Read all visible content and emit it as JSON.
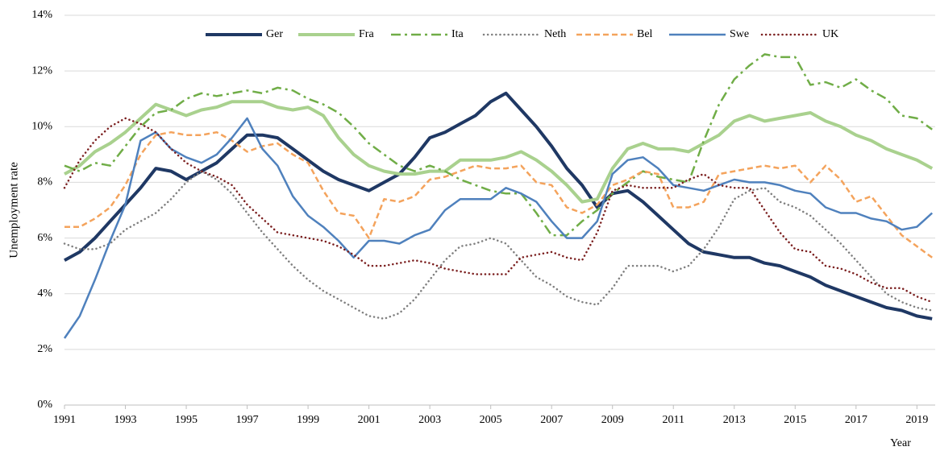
{
  "chart_data": {
    "type": "line",
    "xlabel": "Year",
    "ylabel": "Unemployment rate",
    "x": [
      1991,
      1991.5,
      1992,
      1992.5,
      1993,
      1993.5,
      1994,
      1994.5,
      1995,
      1995.5,
      1996,
      1996.5,
      1997,
      1997.5,
      1998,
      1998.5,
      1999,
      1999.5,
      2000,
      2000.5,
      2001,
      2001.5,
      2002,
      2002.5,
      2003,
      2003.5,
      2004,
      2004.5,
      2005,
      2005.5,
      2006,
      2006.5,
      2007,
      2007.5,
      2008,
      2008.5,
      2009,
      2009.5,
      2010,
      2010.5,
      2011,
      2011.5,
      2012,
      2012.5,
      2013,
      2013.5,
      2014,
      2014.5,
      2015,
      2015.5,
      2016,
      2016.5,
      2017,
      2017.5,
      2018,
      2018.5,
      2019,
      2019.5
    ],
    "series": [
      {
        "name": "Ger",
        "color": "#1f3864",
        "style": "bold",
        "values": [
          5.2,
          5.5,
          6.0,
          6.6,
          7.2,
          7.8,
          8.5,
          8.4,
          8.1,
          8.4,
          8.7,
          9.2,
          9.7,
          9.7,
          9.6,
          9.2,
          8.8,
          8.4,
          8.1,
          7.9,
          7.7,
          8.0,
          8.3,
          8.9,
          9.6,
          9.8,
          10.1,
          10.4,
          10.9,
          11.2,
          10.6,
          10.0,
          9.3,
          8.5,
          7.9,
          7.1,
          7.6,
          7.7,
          7.3,
          6.8,
          6.3,
          5.8,
          5.5,
          5.4,
          5.3,
          5.3,
          5.1,
          5.0,
          4.8,
          4.6,
          4.3,
          4.1,
          3.9,
          3.7,
          3.5,
          3.4,
          3.2,
          3.1
        ]
      },
      {
        "name": "Fra",
        "color": "#a9d18e",
        "style": "bold",
        "values": [
          8.3,
          8.6,
          9.1,
          9.4,
          9.8,
          10.3,
          10.8,
          10.6,
          10.4,
          10.6,
          10.7,
          10.9,
          10.9,
          10.9,
          10.7,
          10.6,
          10.7,
          10.4,
          9.6,
          9.0,
          8.6,
          8.4,
          8.3,
          8.3,
          8.4,
          8.4,
          8.8,
          8.8,
          8.8,
          8.9,
          9.1,
          8.8,
          8.4,
          7.9,
          7.3,
          7.4,
          8.5,
          9.2,
          9.4,
          9.2,
          9.2,
          9.1,
          9.4,
          9.7,
          10.2,
          10.4,
          10.2,
          10.3,
          10.4,
          10.5,
          10.2,
          10.0,
          9.7,
          9.5,
          9.2,
          9.0,
          8.8,
          8.5
        ]
      },
      {
        "name": "Ita",
        "color": "#70ad47",
        "style": "dashdot",
        "values": [
          8.6,
          8.4,
          8.7,
          8.6,
          9.3,
          10.0,
          10.5,
          10.6,
          11.0,
          11.2,
          11.1,
          11.2,
          11.3,
          11.2,
          11.4,
          11.3,
          11.0,
          10.8,
          10.5,
          10.0,
          9.4,
          9.0,
          8.6,
          8.4,
          8.6,
          8.4,
          8.1,
          7.9,
          7.7,
          7.6,
          7.6,
          6.9,
          6.1,
          6.1,
          6.6,
          7.0,
          7.6,
          8.0,
          8.4,
          8.2,
          8.1,
          8.0,
          9.5,
          10.8,
          11.7,
          12.2,
          12.6,
          12.5,
          12.5,
          11.5,
          11.6,
          11.4,
          11.7,
          11.3,
          11.0,
          10.4,
          10.3,
          9.9
        ]
      },
      {
        "name": "Neth",
        "color": "#7f7f7f",
        "style": "dotted",
        "values": [
          5.8,
          5.6,
          5.6,
          5.8,
          6.3,
          6.6,
          6.9,
          7.4,
          8.0,
          8.4,
          8.1,
          7.6,
          6.9,
          6.2,
          5.6,
          5.0,
          4.5,
          4.1,
          3.8,
          3.5,
          3.2,
          3.1,
          3.3,
          3.8,
          4.5,
          5.2,
          5.7,
          5.8,
          6.0,
          5.8,
          5.2,
          4.6,
          4.3,
          3.9,
          3.7,
          3.6,
          4.2,
          5.0,
          5.0,
          5.0,
          4.8,
          5.0,
          5.6,
          6.4,
          7.4,
          7.7,
          7.8,
          7.3,
          7.1,
          6.8,
          6.3,
          5.8,
          5.2,
          4.6,
          4.0,
          3.7,
          3.5,
          3.4
        ]
      },
      {
        "name": "Bel",
        "color": "#f4a35c",
        "style": "dashed",
        "values": [
          6.4,
          6.4,
          6.7,
          7.1,
          7.9,
          9.0,
          9.7,
          9.8,
          9.7,
          9.7,
          9.8,
          9.5,
          9.1,
          9.3,
          9.4,
          9.0,
          8.7,
          7.7,
          6.9,
          6.8,
          6.0,
          7.4,
          7.3,
          7.5,
          8.1,
          8.2,
          8.4,
          8.6,
          8.5,
          8.5,
          8.6,
          8.0,
          7.9,
          7.1,
          6.9,
          7.2,
          7.9,
          8.1,
          8.4,
          8.3,
          7.1,
          7.1,
          7.3,
          8.3,
          8.4,
          8.5,
          8.6,
          8.5,
          8.6,
          8.0,
          8.6,
          8.1,
          7.3,
          7.5,
          6.8,
          6.1,
          5.7,
          5.3
        ]
      },
      {
        "name": "Swe",
        "color": "#4f81bd",
        "style": "solid",
        "values": [
          2.4,
          3.2,
          4.5,
          5.9,
          7.2,
          9.5,
          9.8,
          9.2,
          8.9,
          8.7,
          9.0,
          9.6,
          10.3,
          9.2,
          8.6,
          7.5,
          6.8,
          6.4,
          5.9,
          5.3,
          5.9,
          5.9,
          5.8,
          6.1,
          6.3,
          7.0,
          7.4,
          7.4,
          7.4,
          7.8,
          7.6,
          7.3,
          6.6,
          6.0,
          6.0,
          6.6,
          8.3,
          8.8,
          8.9,
          8.5,
          7.9,
          7.8,
          7.7,
          7.9,
          8.1,
          8.0,
          8.0,
          7.9,
          7.7,
          7.6,
          7.1,
          6.9,
          6.9,
          6.7,
          6.6,
          6.3,
          6.4,
          6.9
        ]
      },
      {
        "name": "UK",
        "color": "#7b1f1f",
        "style": "dotted",
        "values": [
          7.8,
          8.8,
          9.5,
          10.0,
          10.3,
          10.1,
          9.8,
          9.2,
          8.7,
          8.4,
          8.2,
          7.9,
          7.2,
          6.7,
          6.2,
          6.1,
          6.0,
          5.9,
          5.7,
          5.4,
          5.0,
          5.0,
          5.1,
          5.2,
          5.1,
          4.9,
          4.8,
          4.7,
          4.7,
          4.7,
          5.3,
          5.4,
          5.5,
          5.3,
          5.2,
          6.2,
          7.7,
          7.9,
          7.8,
          7.8,
          7.8,
          8.1,
          8.3,
          7.9,
          7.8,
          7.8,
          7.0,
          6.2,
          5.6,
          5.5,
          5.0,
          4.9,
          4.7,
          4.4,
          4.2,
          4.2,
          3.9,
          3.7
        ]
      }
    ],
    "xlim": [
      1991,
      2019.6
    ],
    "xticks": [
      1991,
      1993,
      1995,
      1997,
      1999,
      2001,
      2003,
      2005,
      2007,
      2009,
      2011,
      2013,
      2015,
      2017,
      2019
    ],
    "ylim": [
      0,
      14
    ],
    "yticks": [
      {
        "value": 0,
        "label": "0%"
      },
      {
        "value": 2,
        "label": "2%"
      },
      {
        "value": 4,
        "label": "4%"
      },
      {
        "value": 6,
        "label": "6%"
      },
      {
        "value": 8,
        "label": "8%"
      },
      {
        "value": 10,
        "label": "10%"
      },
      {
        "value": 12,
        "label": "12%"
      },
      {
        "value": 14,
        "label": "14%"
      }
    ],
    "grid": true,
    "legend": "top"
  }
}
